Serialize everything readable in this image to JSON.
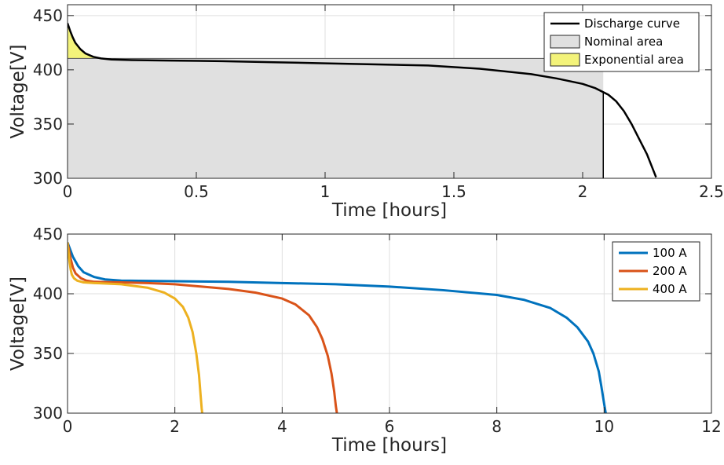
{
  "chart_data": [
    {
      "type": "line",
      "xlabel": "Time [hours]",
      "ylabel": "Voltage[V]",
      "xlim": [
        0,
        2.5
      ],
      "ylim": [
        300,
        460
      ],
      "xticks": [
        "0",
        "0.5",
        "1",
        "1.5",
        "2",
        "2.5"
      ],
      "yticks": [
        "300",
        "350",
        "400",
        "450"
      ],
      "grid": true,
      "legend_position": "top-right",
      "series": [
        {
          "name": "Discharge curve",
          "color": "#000000",
          "x": [
            0,
            0.01,
            0.02,
            0.03,
            0.05,
            0.07,
            0.1,
            0.13,
            0.17,
            0.25,
            0.4,
            0.6,
            0.8,
            1.0,
            1.2,
            1.4,
            1.6,
            1.8,
            1.9,
            2.0,
            2.05,
            2.1,
            2.13,
            2.16,
            2.19,
            2.22,
            2.25,
            2.27,
            2.285
          ],
          "y": [
            443,
            436,
            430,
            425,
            419,
            415,
            412,
            410.5,
            409.5,
            409,
            408.5,
            408,
            407,
            406,
            405,
            404,
            401,
            396,
            392,
            387,
            383,
            377,
            371,
            362,
            350,
            336,
            322,
            310,
            301
          ]
        }
      ],
      "areas": [
        {
          "name": "Nominal area",
          "color": "#e0e0e0",
          "x_range": [
            0,
            2.08
          ],
          "baseline": 300,
          "level": 410.5
        },
        {
          "name": "Exponential area",
          "color": "#f3f37a",
          "x_range": [
            0,
            0.13
          ],
          "level": 410.5
        }
      ],
      "annotations": [
        {
          "type": "vertical-line",
          "x": 2.08,
          "from": 300,
          "to": 380
        }
      ]
    },
    {
      "type": "line",
      "xlabel": "Time [hours]",
      "ylabel": "Voltage[V]",
      "xlim": [
        0,
        12
      ],
      "ylim": [
        300,
        450
      ],
      "xticks": [
        "0",
        "2",
        "4",
        "6",
        "8",
        "10",
        "12"
      ],
      "yticks": [
        "300",
        "350",
        "400",
        "450"
      ],
      "grid": true,
      "legend_position": "top-right",
      "series": [
        {
          "name": "100 A",
          "color": "#0072bd",
          "x": [
            0,
            0.05,
            0.1,
            0.2,
            0.3,
            0.5,
            0.7,
            1,
            2,
            3,
            4,
            5,
            6,
            7,
            8,
            8.5,
            9,
            9.3,
            9.5,
            9.7,
            9.8,
            9.9,
            9.95,
            10,
            10.03
          ],
          "y": [
            443,
            437,
            431,
            423,
            418,
            414,
            412,
            411,
            410.5,
            410,
            409,
            408,
            406,
            403,
            399,
            395,
            388,
            380,
            372,
            360,
            350,
            335,
            322,
            308,
            300
          ]
        },
        {
          "name": "200 A",
          "color": "#d95319",
          "x": [
            0,
            0.03,
            0.06,
            0.1,
            0.15,
            0.25,
            0.35,
            0.5,
            1,
            1.5,
            2,
            2.5,
            3,
            3.5,
            4,
            4.25,
            4.5,
            4.65,
            4.75,
            4.85,
            4.92,
            4.97,
            5.0,
            5.02
          ],
          "y": [
            443,
            436,
            429,
            422,
            417,
            413,
            411,
            410,
            409.5,
            409,
            408,
            406,
            404,
            401,
            396,
            391,
            382,
            372,
            362,
            348,
            333,
            318,
            306,
            300
          ]
        },
        {
          "name": "400 A",
          "color": "#edb120",
          "x": [
            0,
            0.02,
            0.04,
            0.06,
            0.08,
            0.12,
            0.18,
            0.3,
            0.5,
            1,
            1.5,
            1.8,
            2.0,
            2.15,
            2.25,
            2.33,
            2.4,
            2.45,
            2.48,
            2.5,
            2.51
          ],
          "y": [
            443,
            434,
            426,
            420,
            416,
            413,
            411,
            409.5,
            409,
            408,
            405,
            401,
            396,
            389,
            380,
            368,
            350,
            332,
            315,
            304,
            300
          ]
        }
      ]
    }
  ]
}
